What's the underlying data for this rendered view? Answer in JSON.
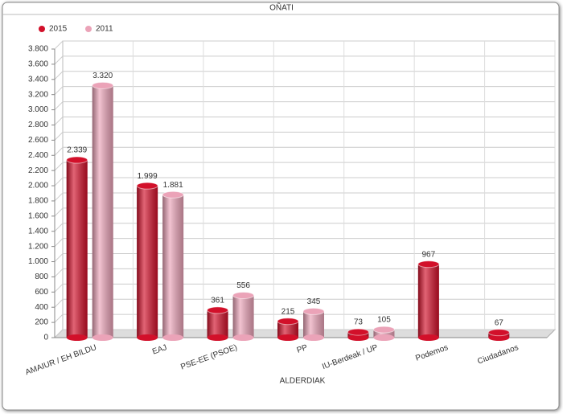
{
  "chart_data": {
    "type": "bar",
    "title": "OÑATI",
    "x_label": "ALDERDIAK",
    "categories": [
      "AMAIUR / EH BILDU",
      "EAJ",
      "PSE-EE (PSOE)",
      "PP",
      "IU-Berdeak / UP",
      "Podemos",
      "Ciudadanos"
    ],
    "series": [
      {
        "name": "2015",
        "color": "#d2102a",
        "values": [
          2339,
          1999,
          361,
          215,
          73,
          967,
          67
        ],
        "value_labels": [
          "2.339",
          "1.999",
          "361",
          "215",
          "73",
          "967",
          "67"
        ]
      },
      {
        "name": "2011",
        "color": "#eba3b8",
        "values": [
          3320,
          1881,
          556,
          345,
          105,
          null,
          null
        ],
        "value_labels": [
          "3.320",
          "1.881",
          "556",
          "345",
          "105",
          null,
          null
        ]
      }
    ],
    "ylim": [
      0,
      3800
    ],
    "yticks": [
      0,
      200,
      400,
      600,
      800,
      {
        "value": 1000,
        "label": "1.000"
      },
      {
        "value": 1200,
        "label": "1.200"
      },
      {
        "value": 1400,
        "label": "1.400"
      },
      {
        "value": 1600,
        "label": "1.600"
      },
      {
        "value": 1800,
        "label": "1.800"
      },
      {
        "value": 2000,
        "label": "2.000"
      },
      {
        "value": 2200,
        "label": "2.200"
      },
      {
        "value": 2400,
        "label": "2.400"
      },
      {
        "value": 2600,
        "label": "2.600"
      },
      {
        "value": 2800,
        "label": "2.800"
      },
      {
        "value": 3000,
        "label": "3.000"
      },
      {
        "value": 3200,
        "label": "3.200"
      },
      {
        "value": 3400,
        "label": "3.400"
      },
      {
        "value": 3600,
        "label": "3.600"
      },
      {
        "value": 3800,
        "label": "3.800"
      }
    ],
    "grid": true,
    "legend": "top-left"
  }
}
